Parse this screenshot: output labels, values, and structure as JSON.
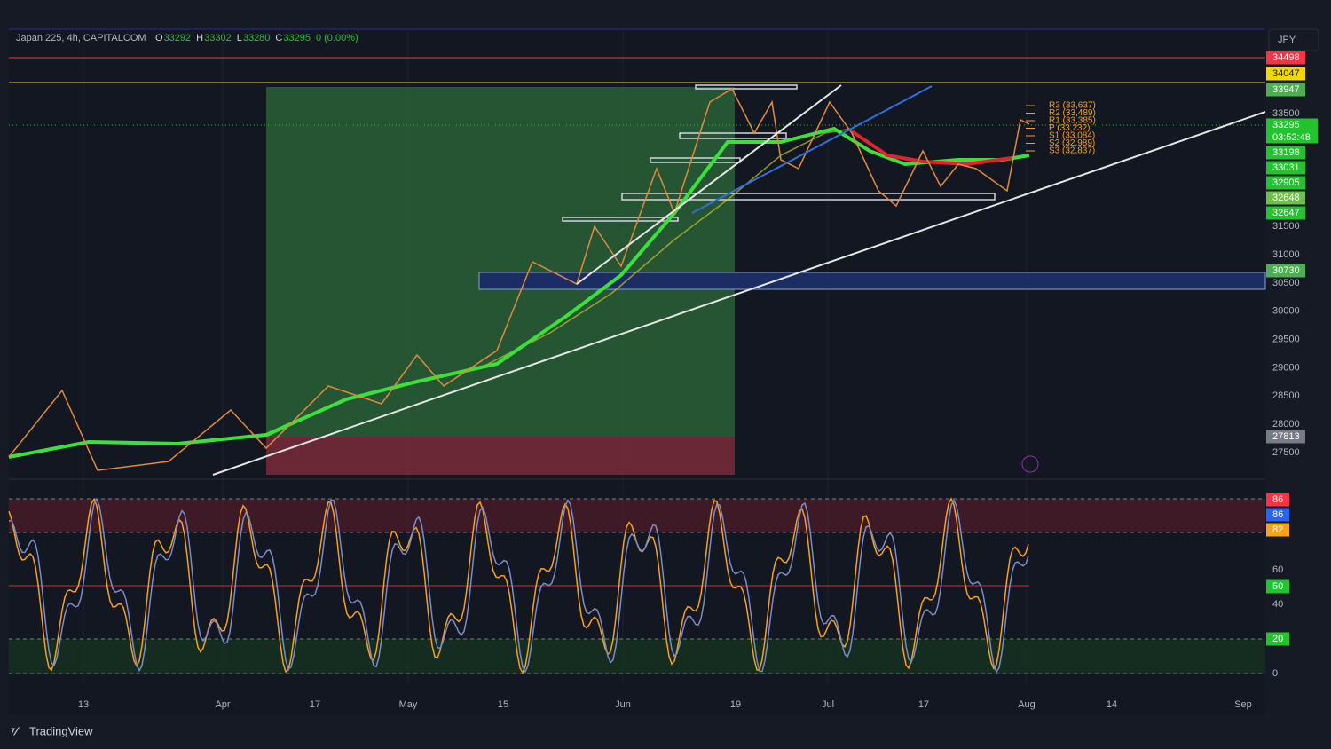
{
  "header": {
    "symbol": "Japan 225, 4h, CAPITALCOM",
    "open_label": "O",
    "open": "33292",
    "high_label": "H",
    "high": "33302",
    "low_label": "L",
    "low": "33280",
    "close_label": "C",
    "close": "33295",
    "change": "0 (0.00%)"
  },
  "currency": "JPY",
  "price_scale": {
    "ticks": [
      33500,
      31500,
      31000,
      30500,
      30000,
      29500,
      29000,
      28500,
      28000,
      27500
    ],
    "badges": [
      {
        "value": 34498,
        "color": "#f23645"
      },
      {
        "value": 34047,
        "color": "#f5d700"
      },
      {
        "value": 33947,
        "color": "#4caf50"
      },
      {
        "value": 33295,
        "color": "#22c32e",
        "countdown": "03:52:48"
      },
      {
        "value": 33198,
        "color": "#22c32e"
      },
      {
        "value": 33031,
        "color": "#22c32e"
      },
      {
        "value": 32905,
        "color": "#22c32e"
      },
      {
        "value": 32648,
        "color": "#6fbf4a"
      },
      {
        "value": 32647,
        "color": "#22c32e"
      },
      {
        "value": 30730,
        "color": "#4caf50"
      },
      {
        "value": 27813,
        "color": "#787b86"
      }
    ]
  },
  "pivots": [
    "R3 (33,637)",
    "R2 (33,489)",
    "R1 (33,385)",
    "P (33,232)",
    "S1 (33,084)",
    "S2 (32,989)",
    "S3 (32,837)"
  ],
  "oscillator": {
    "ticks": [
      60,
      40,
      0
    ],
    "badges": [
      {
        "value": 86,
        "color": "#f23645"
      },
      {
        "value": 86,
        "color": "#2962ff"
      },
      {
        "value": 82,
        "color": "#f7a21b"
      },
      {
        "value": 50,
        "color": "#22c32e"
      },
      {
        "value": 20,
        "color": "#22c32e"
      }
    ]
  },
  "time_axis": [
    "13",
    "Apr",
    "17",
    "May",
    "15",
    "Jun",
    "19",
    "Jul",
    "17",
    "Aug",
    "14",
    "Sep"
  ],
  "logo": "TradingView"
}
